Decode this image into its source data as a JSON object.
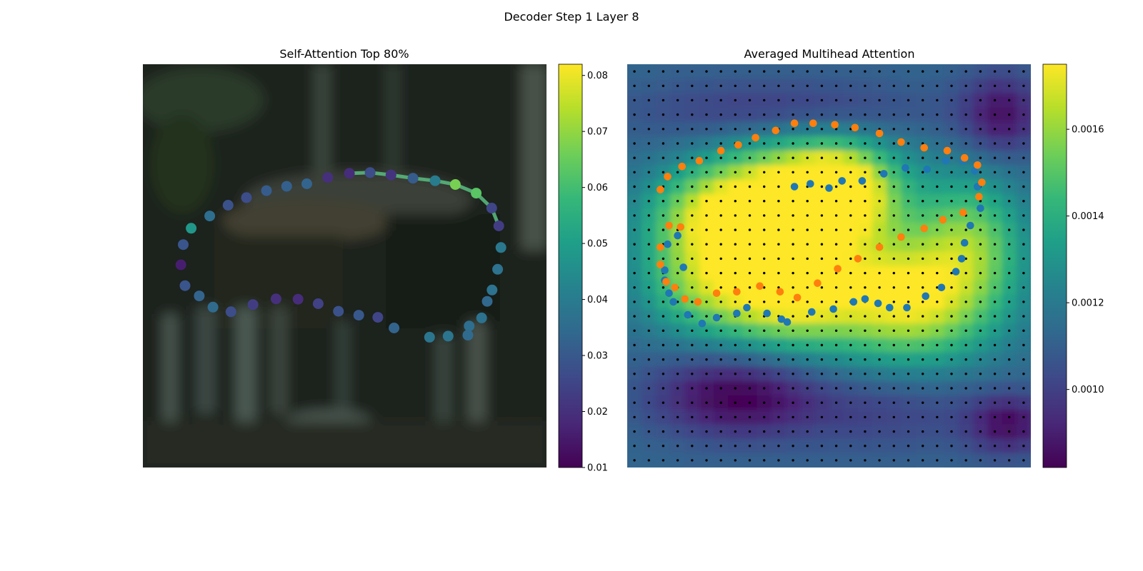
{
  "figure": {
    "suptitle": "Decoder Step 1 Layer 8"
  },
  "colors": {
    "viridis": [
      "#440154",
      "#482878",
      "#3e4989",
      "#31688e",
      "#26828e",
      "#1f9e89",
      "#35b779",
      "#6ece58",
      "#b5de2b",
      "#fde725"
    ],
    "background": "#ffffff",
    "photo_base": "#1c241f",
    "polygon_line": "#5bbd80",
    "grid_dot": "#000000",
    "series_blue": "#1f77b4",
    "series_orange": "#ff7f0e"
  },
  "chart_data": [
    {
      "type": "scatter",
      "title": "Self-Attention Top 80%",
      "xlim": [
        0,
        224
      ],
      "ylim": [
        224,
        0
      ],
      "axes_visible": false,
      "background": "blurred photo (dark green forest scene)",
      "colormap": "viridis",
      "colorbar": {
        "range": [
          0.01,
          0.082
        ],
        "ticks": [
          0.01,
          0.02,
          0.03,
          0.04,
          0.05,
          0.06,
          0.07,
          0.08
        ],
        "tick_labels": [
          "0.01",
          "0.02",
          "0.03",
          "0.04",
          "0.05",
          "0.06",
          "0.07",
          "0.08"
        ]
      },
      "highlight_segment": [
        8,
        16
      ],
      "points": [
        {
          "x": 26.8,
          "y": 91.1,
          "v": 0.048
        },
        {
          "x": 37.1,
          "y": 84.3,
          "v": 0.036
        },
        {
          "x": 47.3,
          "y": 78.3,
          "v": 0.028
        },
        {
          "x": 57.5,
          "y": 74.1,
          "v": 0.027
        },
        {
          "x": 68.6,
          "y": 70.2,
          "v": 0.031
        },
        {
          "x": 79.8,
          "y": 67.8,
          "v": 0.032
        },
        {
          "x": 91.0,
          "y": 66.4,
          "v": 0.033
        },
        {
          "x": 102.6,
          "y": 62.9,
          "v": 0.02
        },
        {
          "x": 114.6,
          "y": 60.6,
          "v": 0.019
        },
        {
          "x": 126.1,
          "y": 60.2,
          "v": 0.027
        },
        {
          "x": 137.7,
          "y": 61.5,
          "v": 0.021
        },
        {
          "x": 149.9,
          "y": 63.3,
          "v": 0.031
        },
        {
          "x": 162.2,
          "y": 64.7,
          "v": 0.04
        },
        {
          "x": 173.4,
          "y": 66.8,
          "v": 0.067
        },
        {
          "x": 185.0,
          "y": 71.6,
          "v": 0.063
        },
        {
          "x": 193.6,
          "y": 79.9,
          "v": 0.025
        },
        {
          "x": 197.5,
          "y": 89.8,
          "v": 0.023
        },
        {
          "x": 198.7,
          "y": 101.8,
          "v": 0.039
        },
        {
          "x": 196.9,
          "y": 113.9,
          "v": 0.037
        },
        {
          "x": 193.8,
          "y": 125.4,
          "v": 0.037
        },
        {
          "x": 191.1,
          "y": 131.7,
          "v": 0.034
        },
        {
          "x": 188.0,
          "y": 140.9,
          "v": 0.037
        },
        {
          "x": 181.1,
          "y": 145.4,
          "v": 0.036
        },
        {
          "x": 180.4,
          "y": 150.5,
          "v": 0.035
        },
        {
          "x": 169.4,
          "y": 151.0,
          "v": 0.038
        },
        {
          "x": 159.1,
          "y": 151.6,
          "v": 0.038
        },
        {
          "x": 139.4,
          "y": 146.5,
          "v": 0.033
        },
        {
          "x": 130.4,
          "y": 140.6,
          "v": 0.025
        },
        {
          "x": 119.8,
          "y": 139.4,
          "v": 0.03
        },
        {
          "x": 108.5,
          "y": 137.2,
          "v": 0.028
        },
        {
          "x": 97.3,
          "y": 133.0,
          "v": 0.024
        },
        {
          "x": 86.1,
          "y": 130.5,
          "v": 0.019
        },
        {
          "x": 73.9,
          "y": 130.3,
          "v": 0.02
        },
        {
          "x": 61.1,
          "y": 133.5,
          "v": 0.023
        },
        {
          "x": 48.9,
          "y": 137.5,
          "v": 0.027
        },
        {
          "x": 38.9,
          "y": 134.9,
          "v": 0.035
        },
        {
          "x": 31.3,
          "y": 128.7,
          "v": 0.033
        },
        {
          "x": 23.4,
          "y": 123.0,
          "v": 0.029
        },
        {
          "x": 21.1,
          "y": 111.4,
          "v": 0.016
        },
        {
          "x": 22.4,
          "y": 100.2,
          "v": 0.029
        }
      ]
    },
    {
      "type": "heatmap",
      "title": "Averaged Multihead Attention",
      "xlim": [
        0,
        28
      ],
      "ylim": [
        28,
        0
      ],
      "axes_visible": false,
      "colormap": "viridis",
      "colorbar": {
        "range": [
          0.00082,
          0.00175
        ],
        "ticks": [
          0.001,
          0.0012,
          0.0014,
          0.0016
        ],
        "tick_labels": [
          "0.0010",
          "0.0012",
          "0.0014",
          "0.0016"
        ]
      },
      "grid_size": 28,
      "attention_blobs": [
        {
          "cx": 6.5,
          "cy": 10.5,
          "sx": 3.5,
          "sy": 2.2,
          "amp": 0.00053
        },
        {
          "cx": 11.5,
          "cy": 8.5,
          "sx": 4.0,
          "sy": 2.5,
          "amp": 0.0005
        },
        {
          "cx": 14.8,
          "cy": 8.8,
          "sx": 2.5,
          "sy": 2.2,
          "amp": 0.00052
        },
        {
          "cx": 11.0,
          "cy": 16.0,
          "sx": 3.5,
          "sy": 2.5,
          "amp": 0.00058
        },
        {
          "cx": 20.0,
          "cy": 16.5,
          "sx": 4.0,
          "sy": 3.0,
          "amp": 0.0006
        },
        {
          "cx": 5.0,
          "cy": 15.0,
          "sx": 3.0,
          "sy": 2.5,
          "amp": 0.0004
        },
        {
          "cx": 24.0,
          "cy": 12.0,
          "sx": 2.5,
          "sy": 3.0,
          "amp": 0.00038
        },
        {
          "cx": 14.0,
          "cy": 12.5,
          "sx": 6.0,
          "sy": 4.5,
          "amp": 0.0003
        },
        {
          "cx": 7.5,
          "cy": 23.0,
          "sx": 4.0,
          "sy": 2.0,
          "amp": -0.00036
        },
        {
          "cx": 11.0,
          "cy": 3.3,
          "sx": 7.0,
          "sy": 1.6,
          "amp": -0.0002
        },
        {
          "cx": 26.0,
          "cy": 3.5,
          "sx": 2.0,
          "sy": 2.0,
          "amp": -0.0003
        },
        {
          "cx": 26.5,
          "cy": 25.0,
          "sx": 2.0,
          "sy": 1.5,
          "amp": -0.0003
        },
        {
          "cx": 18.0,
          "cy": 24.0,
          "sx": 5.0,
          "sy": 2.0,
          "amp": -0.00015
        }
      ],
      "series": [
        {
          "color": "#1f77b4",
          "points": [
            [
              3.5,
              11.9
            ],
            [
              2.8,
              12.5
            ],
            [
              3.9,
              14.1
            ],
            [
              2.6,
              14.3
            ],
            [
              2.6,
              15.0
            ],
            [
              2.9,
              15.9
            ],
            [
              3.2,
              16.5
            ],
            [
              4.2,
              17.4
            ],
            [
              5.2,
              18.0
            ],
            [
              6.2,
              17.6
            ],
            [
              7.6,
              17.3
            ],
            [
              8.3,
              16.9
            ],
            [
              9.7,
              17.3
            ],
            [
              10.7,
              17.7
            ],
            [
              11.1,
              17.9
            ],
            [
              12.8,
              17.2
            ],
            [
              14.3,
              17.0
            ],
            [
              15.7,
              16.5
            ],
            [
              16.5,
              16.3
            ],
            [
              17.4,
              16.6
            ],
            [
              18.2,
              16.9
            ],
            [
              19.4,
              16.9
            ],
            [
              20.7,
              16.1
            ],
            [
              21.8,
              15.5
            ],
            [
              22.8,
              14.4
            ],
            [
              23.2,
              13.5
            ],
            [
              23.4,
              12.4
            ],
            [
              23.8,
              11.2
            ],
            [
              24.5,
              10.0
            ],
            [
              24.3,
              8.5
            ],
            [
              24.1,
              7.4
            ],
            [
              23.3,
              6.7
            ],
            [
              22.1,
              6.7
            ],
            [
              20.8,
              7.3
            ],
            [
              19.3,
              7.2
            ],
            [
              17.8,
              7.6
            ],
            [
              16.3,
              8.1
            ],
            [
              14.9,
              8.1
            ],
            [
              14.0,
              8.6
            ],
            [
              12.7,
              8.3
            ],
            [
              11.6,
              8.5
            ]
          ]
        },
        {
          "color": "#ff7f0e",
          "points": [
            [
              3.7,
              11.3
            ],
            [
              2.9,
              11.2
            ],
            [
              2.3,
              12.7
            ],
            [
              2.3,
              13.9
            ],
            [
              2.7,
              15.1
            ],
            [
              3.3,
              15.5
            ],
            [
              4.0,
              16.3
            ],
            [
              4.9,
              16.5
            ],
            [
              6.2,
              15.9
            ],
            [
              7.6,
              15.8
            ],
            [
              9.2,
              15.4
            ],
            [
              10.6,
              15.8
            ],
            [
              11.8,
              16.2
            ],
            [
              13.2,
              15.2
            ],
            [
              14.6,
              14.2
            ],
            [
              16.0,
              13.5
            ],
            [
              17.5,
              12.7
            ],
            [
              19.0,
              12.0
            ],
            [
              20.6,
              11.4
            ],
            [
              21.9,
              10.8
            ],
            [
              23.3,
              10.3
            ],
            [
              24.4,
              9.2
            ],
            [
              24.6,
              8.2
            ],
            [
              24.3,
              7.0
            ],
            [
              23.4,
              6.5
            ],
            [
              22.2,
              6.0
            ],
            [
              20.6,
              5.8
            ],
            [
              19.0,
              5.4
            ],
            [
              17.5,
              4.8
            ],
            [
              15.8,
              4.4
            ],
            [
              14.4,
              4.2
            ],
            [
              12.9,
              4.1
            ],
            [
              11.6,
              4.1
            ],
            [
              10.3,
              4.6
            ],
            [
              8.9,
              5.1
            ],
            [
              7.7,
              5.6
            ],
            [
              6.5,
              6.0
            ],
            [
              5.0,
              6.7
            ],
            [
              3.8,
              7.1
            ],
            [
              2.8,
              7.8
            ],
            [
              2.3,
              8.7
            ]
          ]
        }
      ]
    }
  ]
}
